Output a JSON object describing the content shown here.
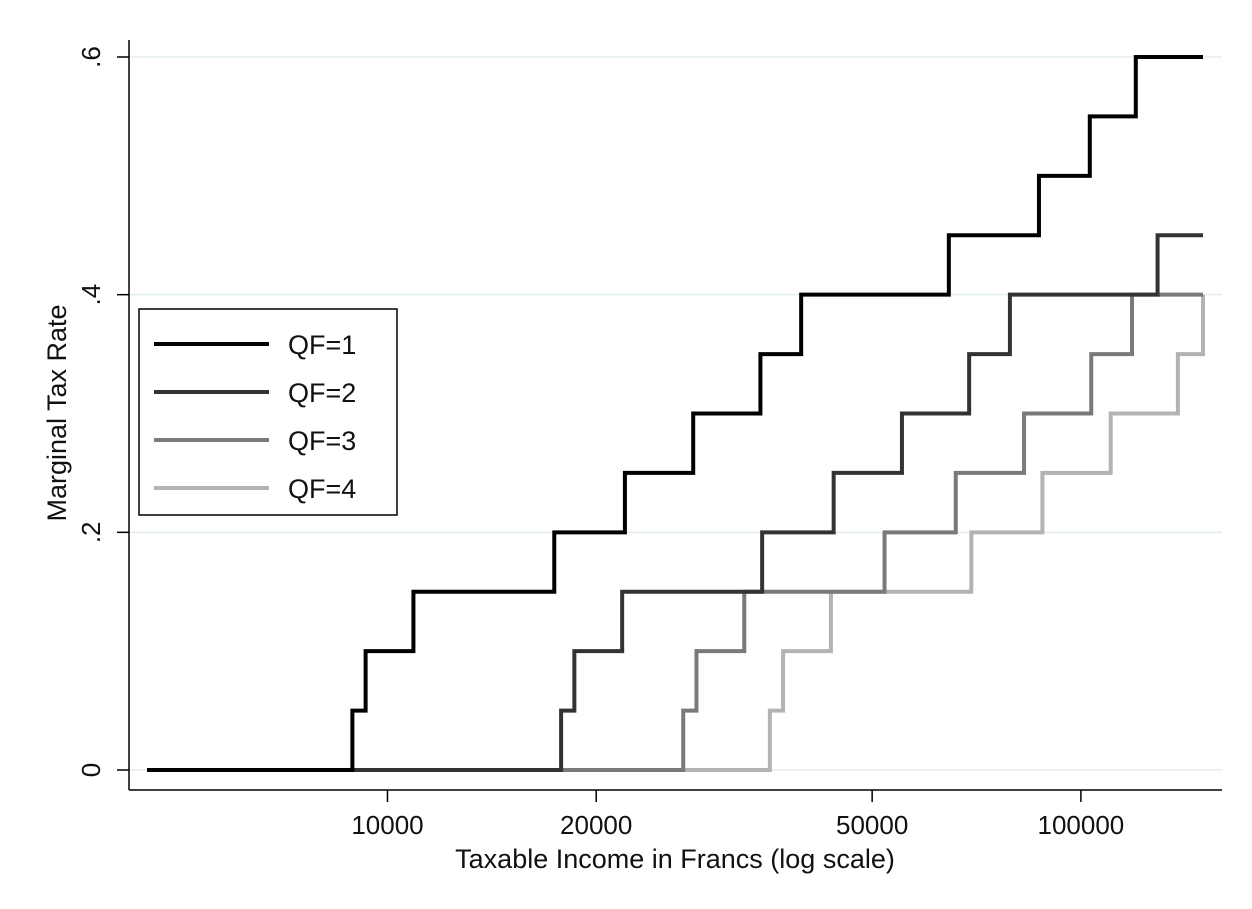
{
  "chart_data": {
    "type": "line",
    "step": true,
    "title": "",
    "xlabel": "Taxable Income in Francs (log scale)",
    "ylabel": "Marginal Tax Rate",
    "xscale": "log",
    "xlim": [
      4500,
      150000
    ],
    "ylim": [
      0,
      0.6
    ],
    "xticks": [
      10000,
      20000,
      50000,
      100000
    ],
    "xtick_labels": [
      "10000",
      "20000",
      "50000",
      "100000"
    ],
    "yticks": [
      0,
      0.2,
      0.4,
      0.6
    ],
    "ytick_labels": [
      "0",
      ".2",
      ".4",
      ".6"
    ],
    "grid": "horizontal",
    "legend_position": "left",
    "series": [
      {
        "name": "QF=1",
        "color": "#000000",
        "x": [
          4500,
          8900,
          9300,
          10900,
          17400,
          22000,
          27600,
          34500,
          39500,
          64500,
          87000,
          103000,
          120000,
          150000
        ],
        "y": [
          0,
          0.05,
          0.1,
          0.15,
          0.2,
          0.25,
          0.3,
          0.35,
          0.4,
          0.45,
          0.5,
          0.55,
          0.6,
          0.6
        ]
      },
      {
        "name": "QF=2",
        "color": "#333333",
        "x": [
          4500,
          17800,
          18600,
          21800,
          34700,
          44000,
          55200,
          69000,
          79000,
          129000,
          150000
        ],
        "y": [
          0,
          0.05,
          0.1,
          0.15,
          0.2,
          0.25,
          0.3,
          0.35,
          0.4,
          0.45,
          0.45
        ]
      },
      {
        "name": "QF=3",
        "color": "#7a7a7a",
        "x": [
          4500,
          26700,
          27900,
          32700,
          52100,
          66000,
          82800,
          103500,
          118500,
          150000
        ],
        "y": [
          0,
          0.05,
          0.1,
          0.15,
          0.2,
          0.25,
          0.3,
          0.35,
          0.4,
          0.4
        ]
      },
      {
        "name": "QF=4",
        "color": "#b3b3b3",
        "x": [
          4500,
          35600,
          37200,
          43600,
          69500,
          88000,
          110400,
          138000,
          150000
        ],
        "y": [
          0,
          0.05,
          0.1,
          0.15,
          0.2,
          0.25,
          0.3,
          0.35,
          0.4
        ]
      }
    ]
  }
}
